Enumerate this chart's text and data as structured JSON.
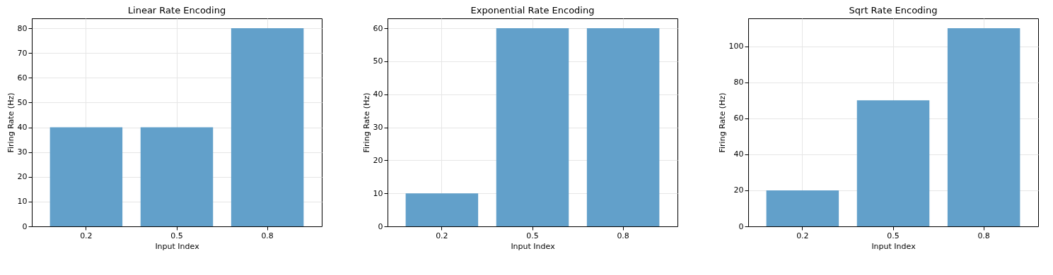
{
  "chart_data": [
    {
      "type": "bar",
      "title": "Linear Rate Encoding",
      "xlabel": "Input Index",
      "ylabel": "Firing Rate (Hz)",
      "categories": [
        "0.2",
        "0.5",
        "0.8"
      ],
      "values": [
        40,
        40,
        80
      ],
      "color": "#62a0ca",
      "ylim": [
        0,
        84
      ],
      "yticks": [
        0,
        10,
        20,
        30,
        40,
        50,
        60,
        70,
        80
      ],
      "grid": true
    },
    {
      "type": "bar",
      "title": "Exponential Rate Encoding",
      "xlabel": "Input Index",
      "ylabel": "Firing Rate (Hz)",
      "categories": [
        "0.2",
        "0.5",
        "0.8"
      ],
      "values": [
        10,
        60,
        60
      ],
      "color": "#62a0ca",
      "ylim": [
        0,
        63
      ],
      "yticks": [
        0,
        10,
        20,
        30,
        40,
        50,
        60
      ],
      "grid": true
    },
    {
      "type": "bar",
      "title": "Sqrt Rate Encoding",
      "xlabel": "Input Index",
      "ylabel": "Firing Rate (Hz)",
      "categories": [
        "0.2",
        "0.5",
        "0.8"
      ],
      "values": [
        20,
        70,
        110
      ],
      "color": "#62a0ca",
      "ylim": [
        0,
        115.5
      ],
      "yticks": [
        0,
        20,
        40,
        60,
        80,
        100
      ],
      "grid": true
    }
  ]
}
